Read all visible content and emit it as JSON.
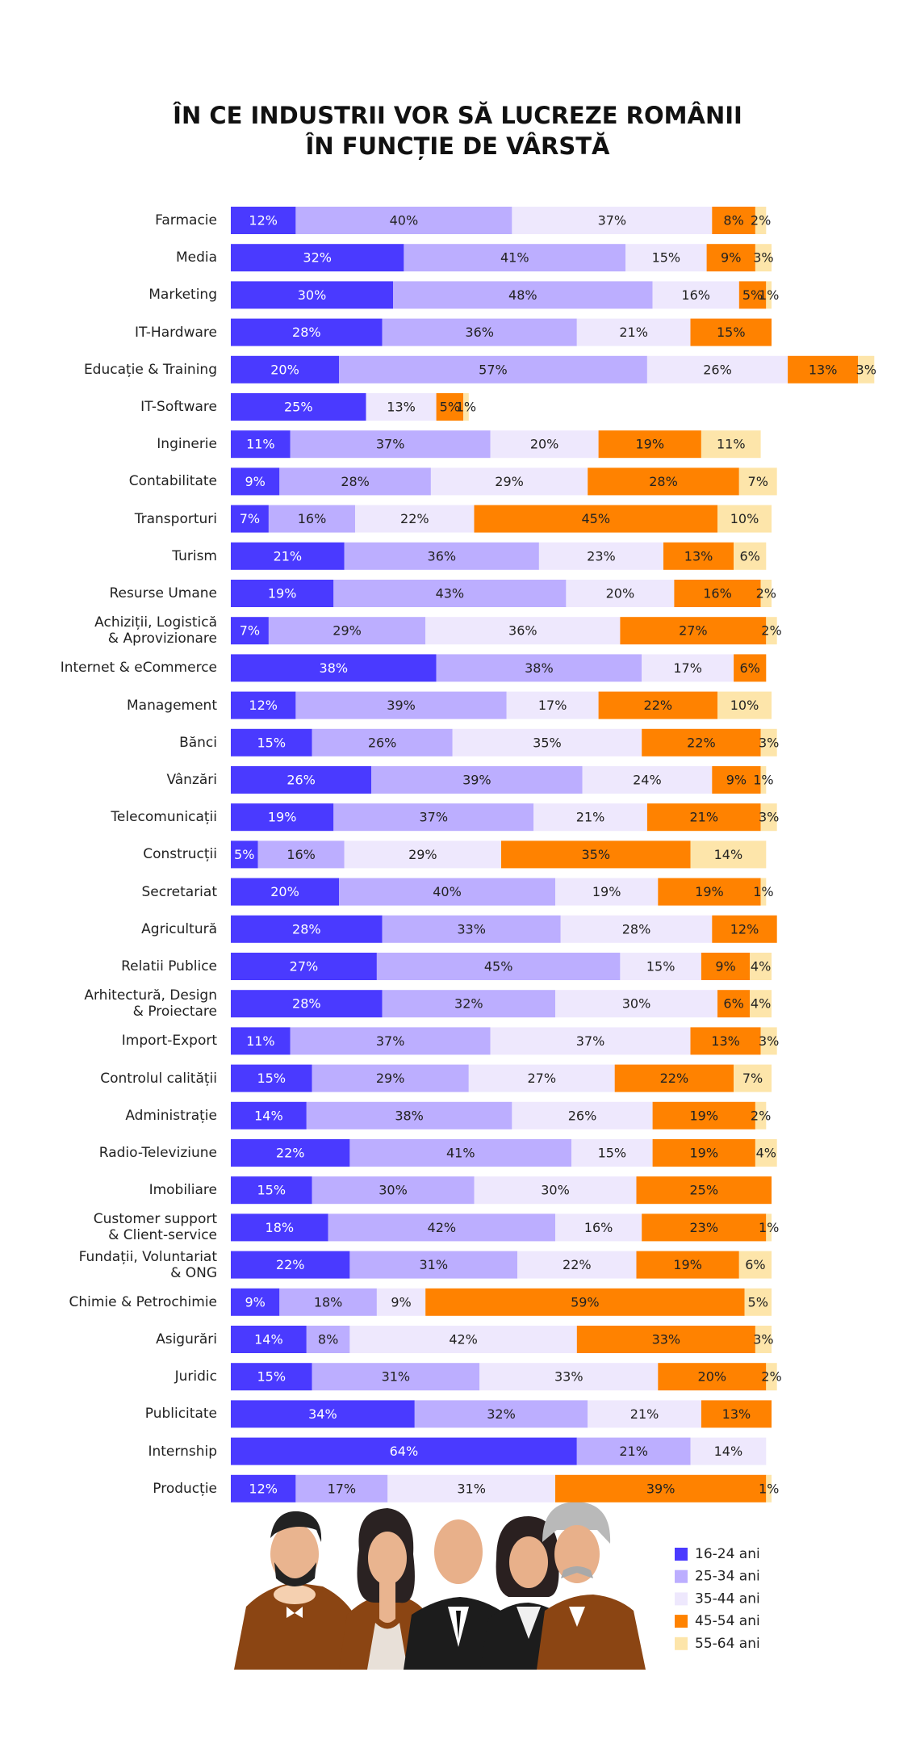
{
  "chart_data": {
    "type": "stacked-bar-horizontal",
    "title_lines": [
      "ÎN CE INDUSTRII VOR SĂ LUCREZE ROMÂNII",
      "ÎN FUNCȚIE DE VÂRSTĂ"
    ],
    "categories": [
      "Farmacie",
      "Media",
      "Marketing",
      "IT-Hardware",
      "Educație & Training",
      "IT-Software",
      "Inginerie",
      "Contabilitate",
      "Transporturi",
      "Turism",
      "Resurse Umane",
      "Achiziții, Logistică\n& Aprovizionare",
      "Internet & eCommerce",
      "Management",
      "Bănci",
      "Vânzări",
      "Telecomunicații",
      "Construcții",
      "Secretariat",
      "Agricultură",
      "Relatii Publice",
      "Arhitectură, Design\n& Proiectare",
      "Import-Export",
      "Controlul calității",
      "Administrație",
      "Radio-Televiziune",
      "Imobiliare",
      "Customer support\n& Client-service",
      "Fundații, Voluntariat\n& ONG",
      "Chimie & Petrochimie",
      "Asigurări",
      "Juridic",
      "Publicitate",
      "Internship",
      "Producție"
    ],
    "series": [
      {
        "name": "16-24 ani",
        "color": "#4a3aff",
        "values": [
          12,
          32,
          30,
          28,
          20,
          25,
          11,
          9,
          7,
          21,
          19,
          7,
          38,
          12,
          15,
          26,
          19,
          5,
          20,
          28,
          27,
          28,
          11,
          15,
          14,
          22,
          15,
          18,
          22,
          9,
          14,
          15,
          34,
          64,
          12
        ],
        "value_labels": [
          "12%",
          "32%",
          "30%",
          "28%",
          "20%",
          "25%",
          "11%",
          "9%",
          "7%",
          "21%",
          "19%",
          "7%",
          "38%",
          "12%",
          "15%",
          "26%",
          "19%",
          "5%",
          "20%",
          "28%",
          "27%",
          "28%",
          "11%",
          "15%",
          "14%",
          "22%",
          "15%",
          "18%",
          "22%",
          "9%",
          "14%",
          "15%",
          "34%",
          "64%",
          "12%"
        ]
      },
      {
        "name": "25-34 ani",
        "color": "#bcaeff",
        "values": [
          40,
          41,
          48,
          36,
          57,
          null,
          37,
          28,
          16,
          36,
          43,
          29,
          38,
          39,
          26,
          39,
          37,
          16,
          40,
          33,
          45,
          32,
          37,
          29,
          38,
          41,
          30,
          42,
          31,
          18,
          8,
          31,
          32,
          21,
          17
        ],
        "value_labels": [
          "40%",
          "41%",
          "48%",
          "36%",
          "57%",
          null,
          "37%",
          "28%",
          "16%",
          "36%",
          "43%",
          "29%",
          "38%",
          "39%",
          "26%",
          "39%",
          "37%",
          "16%",
          "40%",
          "33%",
          "45%",
          "32%",
          "37%",
          "29%",
          "38%",
          "41%",
          "30%",
          "42%",
          "31%",
          "18%",
          "8%",
          "31%",
          "32%",
          "21%",
          "17%"
        ]
      },
      {
        "name": "35-44 ani",
        "color": "#eee8fd",
        "values": [
          37,
          15,
          16,
          21,
          26,
          13,
          20,
          29,
          22,
          23,
          20,
          36,
          17,
          17,
          35,
          24,
          21,
          29,
          19,
          28,
          15,
          30,
          37,
          27,
          26,
          15,
          30,
          16,
          22,
          9,
          42,
          33,
          21,
          14,
          31
        ],
        "value_labels": [
          "37%",
          "15%",
          "16%",
          "21%",
          "26%",
          "13%",
          "20%",
          "29%",
          "22%",
          "23%",
          "20%",
          "36%",
          "17%",
          "17%",
          "35%",
          "24%",
          "21%",
          "29%",
          "19%",
          "28%",
          "15%",
          "30%",
          "37%",
          "27%",
          "26%",
          "15%",
          "30%",
          "16%",
          "22%",
          "9%",
          "42%",
          "33%",
          "21%",
          "14%",
          "31%"
        ]
      },
      {
        "name": "45-54 ani",
        "color": "#ff8200",
        "values": [
          8,
          9,
          5,
          15,
          13,
          5,
          19,
          28,
          45,
          13,
          16,
          27,
          6,
          22,
          22,
          9,
          21,
          35,
          19,
          12,
          9,
          6,
          13,
          22,
          19,
          19,
          25,
          23,
          19,
          59,
          33,
          20,
          13,
          null,
          39
        ],
        "value_labels": [
          "8%",
          "9%",
          "5%",
          "15%",
          "13%",
          "5%",
          "19%",
          "28%",
          "45%",
          "13%",
          "16%",
          "27%",
          "6%",
          "22%",
          "22%",
          "9%",
          "21%",
          "35%",
          "19%",
          "12%",
          "9%",
          "6%",
          "13%",
          "22%",
          "19%",
          "19%",
          "25%",
          "23%",
          "19%",
          "59%",
          "33%",
          "20%",
          "13%",
          null,
          "39%"
        ]
      },
      {
        "name": "55-64 ani",
        "color": "#fde5aa",
        "values": [
          2,
          3,
          1,
          null,
          3,
          1,
          11,
          7,
          10,
          6,
          2,
          2,
          null,
          10,
          3,
          1,
          3,
          14,
          1,
          null,
          4,
          4,
          3,
          7,
          2,
          4,
          null,
          1,
          6,
          5,
          3,
          2,
          null,
          null,
          1
        ],
        "value_labels": [
          "2%",
          "3%",
          "1%",
          null,
          "3%",
          "1%",
          "11%",
          "7%",
          "10%",
          "6%",
          "2%",
          "2%",
          null,
          "10%",
          "3%",
          "1%",
          "3%",
          "14%",
          "1%",
          null,
          "4%",
          "4%",
          "3%",
          "7%",
          "2%",
          "4%",
          null,
          "1%",
          "6%",
          "5%",
          "3%",
          "2%",
          null,
          null,
          "1%"
        ]
      }
    ]
  }
}
